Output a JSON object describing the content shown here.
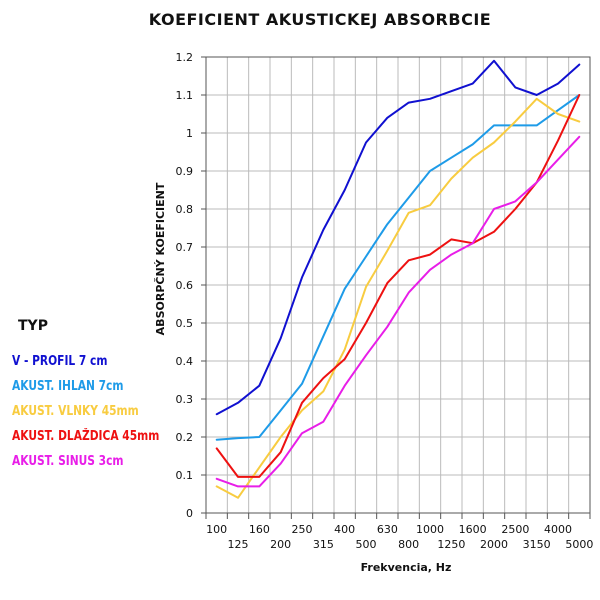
{
  "chart_data": {
    "type": "line",
    "title": "KOEFICIENT AKUSTICKEJ ABSORBCIE",
    "xlabel": "Frekvencia, Hz",
    "ylabel": "ABSORPČNÝ KOEFICIENT",
    "categories": [
      "100",
      "125",
      "160",
      "200",
      "250",
      "315",
      "400",
      "500",
      "630",
      "800",
      "1000",
      "1250",
      "1600",
      "2000",
      "2500",
      "3150",
      "4000",
      "5000"
    ],
    "yticks": [
      "0",
      "0.1",
      "0.2",
      "0.3",
      "0.4",
      "0.5",
      "0.6",
      "0.7",
      "0.8",
      "0.9",
      "1",
      "1.1",
      "1.2"
    ],
    "ylim": [
      0,
      1.2
    ],
    "grid": true,
    "legend_title": "TYP",
    "series": [
      {
        "name": "V - PROFIL 7 cm",
        "color": "#1010d0",
        "values": [
          0.26,
          0.29,
          0.335,
          0.46,
          0.62,
          0.745,
          0.85,
          0.975,
          1.04,
          1.08,
          1.09,
          1.11,
          1.13,
          1.19,
          1.12,
          1.1,
          1.13,
          1.18
        ]
      },
      {
        "name": "AKUST. IHLAN 7cm",
        "color": "#1e9be8",
        "values": [
          0.193,
          0.197,
          0.2,
          0.27,
          0.34,
          0.465,
          0.59,
          0.675,
          0.76,
          0.83,
          0.9,
          0.935,
          0.97,
          1.02,
          1.02,
          1.02,
          1.06,
          1.1
        ]
      },
      {
        "name": "AKUST. VLNKY 45mm",
        "color": "#f8cc40",
        "values": [
          0.07,
          0.04,
          0.12,
          0.2,
          0.27,
          0.32,
          0.43,
          0.595,
          0.69,
          0.79,
          0.81,
          0.88,
          0.935,
          0.975,
          1.03,
          1.09,
          1.05,
          1.03
        ]
      },
      {
        "name": "AKUST. DLAŽDICA 45mm",
        "color": "#ee1111",
        "values": [
          0.17,
          0.095,
          0.095,
          0.16,
          0.29,
          0.355,
          0.405,
          0.5,
          0.605,
          0.665,
          0.68,
          0.72,
          0.71,
          0.74,
          0.8,
          0.87,
          0.98,
          1.1
        ]
      },
      {
        "name": "AKUST. SINUS 3cm",
        "color": "#e81ee8",
        "values": [
          0.09,
          0.07,
          0.07,
          0.13,
          0.21,
          0.24,
          0.335,
          0.415,
          0.49,
          0.58,
          0.64,
          0.68,
          0.71,
          0.8,
          0.82,
          0.87,
          0.93,
          0.99
        ]
      }
    ]
  }
}
